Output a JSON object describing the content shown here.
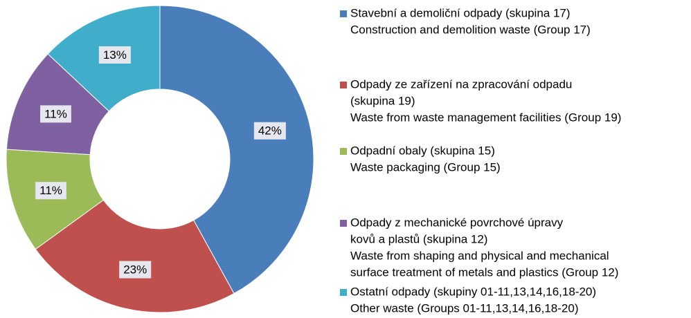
{
  "chart_data": {
    "type": "pie",
    "donut": true,
    "categories": [
      [
        "Stavební a demoliční odpady (skupina 17)",
        "Construction and demolition waste (Group 17)"
      ],
      [
        "Odpady ze zařízení na zpracování odpadu",
        "(skupina 19)",
        "Waste from waste management facilities (Group 19)"
      ],
      [
        "Odpadní obaly (skupina 15)",
        "Waste packaging (Group 15)"
      ],
      [
        "Odpady z mechanické povrchové úpravy",
        "kovů a plastů (skupina 12)",
        "Waste from shaping and physical and mechanical",
        "surface treatment of metals and plastics (Group 12)"
      ],
      [
        "Ostatní odpady  (skupiny 01-11,13,14,16,18-20)",
        "Other waste (Groups 01-11,13,14,16,18-20)"
      ]
    ],
    "values": [
      42,
      23,
      11,
      11,
      13
    ],
    "value_labels": [
      "42%",
      "23%",
      "11%",
      "11%",
      "13%"
    ],
    "colors": [
      "#4a7ebb",
      "#c0504d",
      "#9bbb59",
      "#7f60a0",
      "#40aecb"
    ],
    "legend": "right"
  }
}
